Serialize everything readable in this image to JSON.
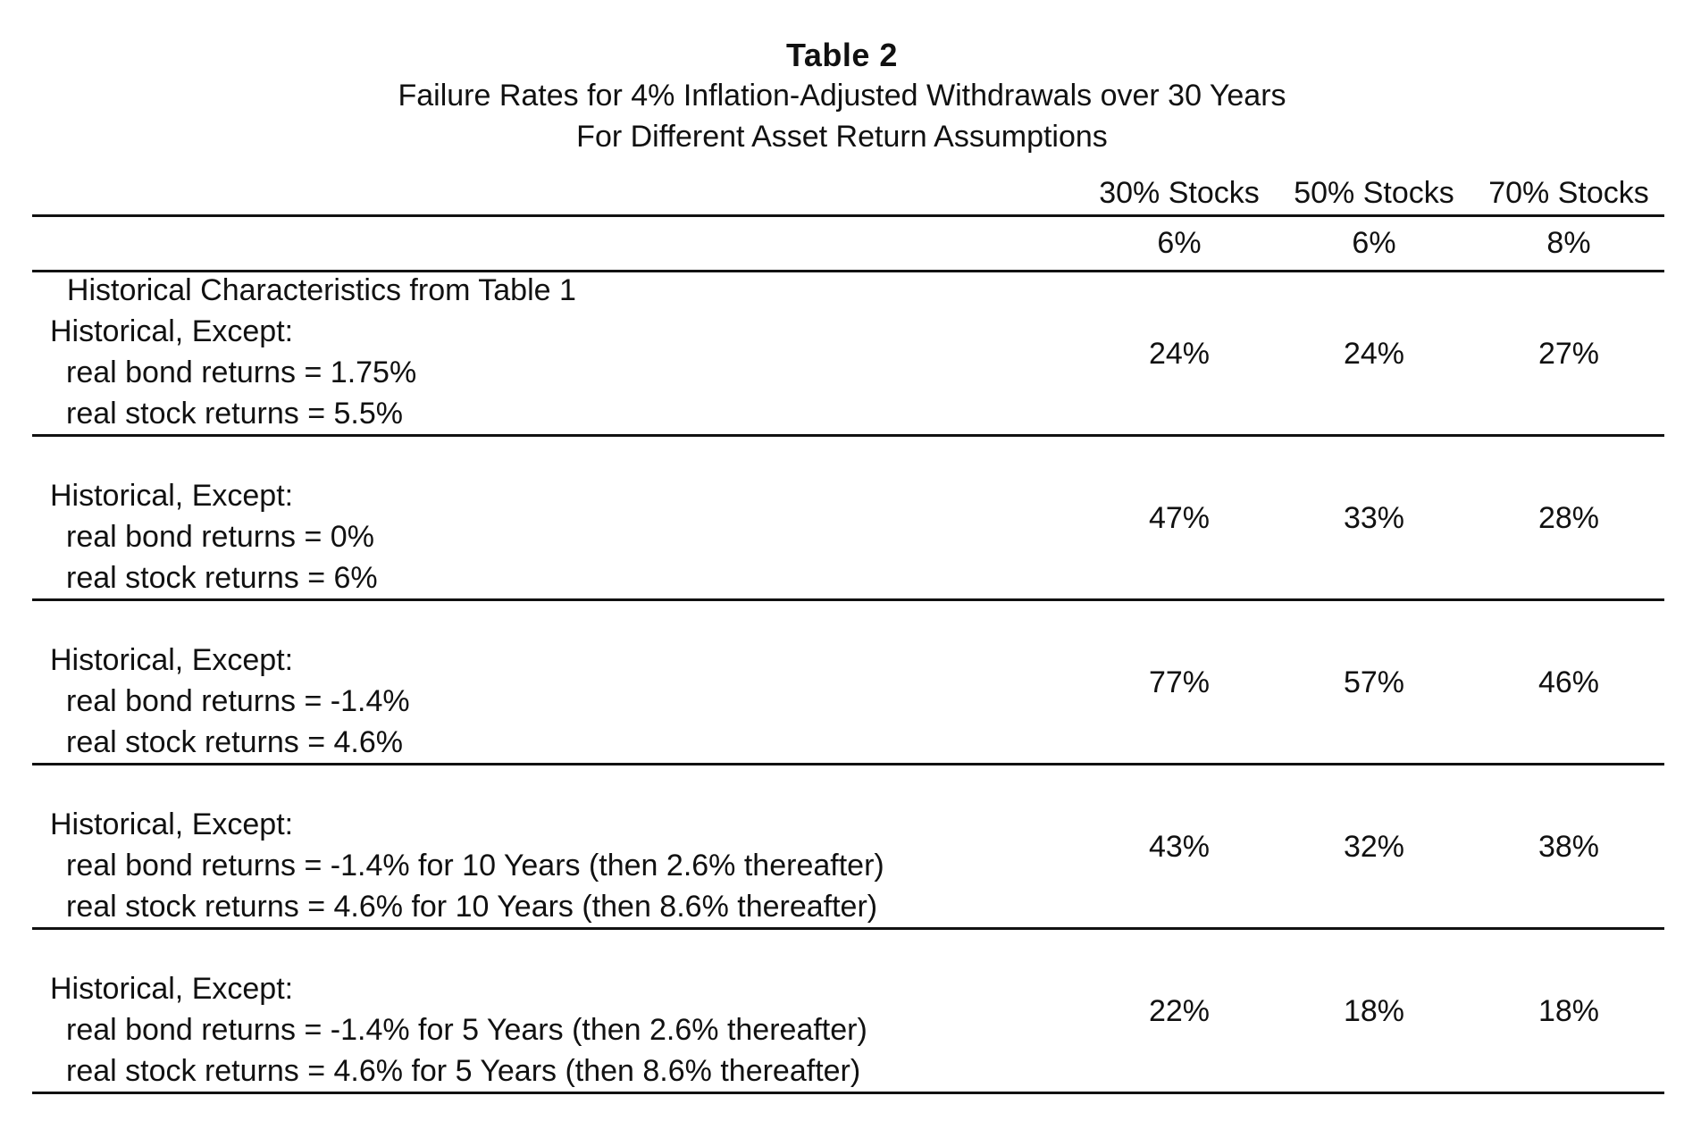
{
  "table": {
    "title": "Table 2",
    "subtitle_line1": "Failure Rates for 4% Inflation-Adjusted Withdrawals over 30 Years",
    "subtitle_line2": "For Different Asset Return Assumptions",
    "columns": [
      "30% Stocks",
      "50% Stocks",
      "70% Stocks"
    ],
    "rows": [
      {
        "label_lines": [
          "Historical Characteristics from Table 1"
        ],
        "values": [
          "6%",
          "6%",
          "8%"
        ]
      },
      {
        "label_lines": [
          "Historical, Except:",
          "real bond returns = 1.75%",
          "real stock returns = 5.5%"
        ],
        "values": [
          "24%",
          "24%",
          "27%"
        ]
      },
      {
        "label_lines": [
          "Historical, Except:",
          "real bond returns = 0%",
          "real stock returns = 6%"
        ],
        "values": [
          "47%",
          "33%",
          "28%"
        ]
      },
      {
        "label_lines": [
          "Historical, Except:",
          "real bond returns = -1.4%",
          "real stock returns = 4.6%"
        ],
        "values": [
          "77%",
          "57%",
          "46%"
        ]
      },
      {
        "label_lines": [
          "Historical, Except:",
          "real bond returns = -1.4% for 10 Years (then 2.6% thereafter)",
          "real stock returns = 4.6% for 10 Years (then 8.6% thereafter)"
        ],
        "values": [
          "43%",
          "32%",
          "38%"
        ]
      },
      {
        "label_lines": [
          "Historical, Except:",
          "real bond returns = -1.4% for 5 Years (then 2.6% thereafter)",
          "real stock returns = 4.6% for 5 Years (then 8.6% thereafter)"
        ],
        "values": [
          "22%",
          "18%",
          "18%"
        ]
      }
    ]
  }
}
